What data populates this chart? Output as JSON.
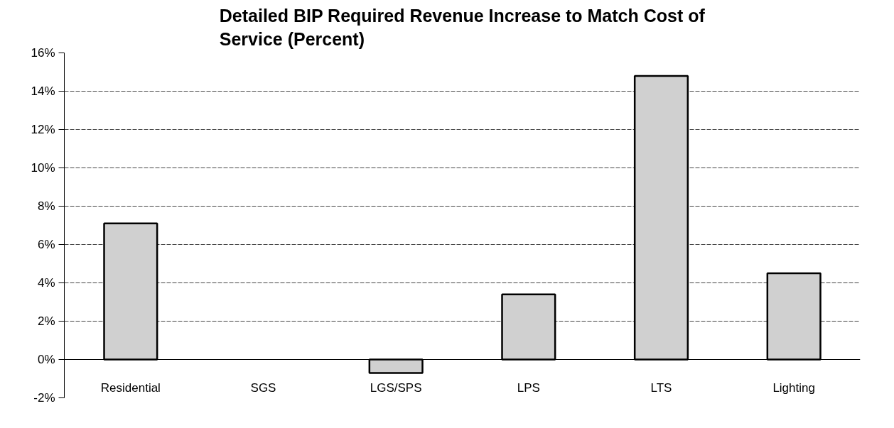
{
  "chart_data": {
    "type": "bar",
    "title": "Detailed BIP Required Revenue Increase to Match Cost of Service (Percent)",
    "categories": [
      "Residential",
      "SGS",
      "LGS/SPS",
      "LPS",
      "LTS",
      "Lighting"
    ],
    "values": [
      7.1,
      null,
      -0.7,
      3.4,
      14.8,
      4.5
    ],
    "color": "#d0d0d0",
    "ylim": [
      -2,
      16
    ],
    "yticks": [
      {
        "value": -2,
        "label": "-2%"
      },
      {
        "value": 0,
        "label": "0%"
      },
      {
        "value": 2,
        "label": "2%"
      },
      {
        "value": 4,
        "label": "4%"
      },
      {
        "value": 6,
        "label": "6%"
      },
      {
        "value": 8,
        "label": "8%"
      },
      {
        "value": 10,
        "label": "10%"
      },
      {
        "value": 12,
        "label": "12%"
      },
      {
        "value": 14,
        "label": "14%"
      },
      {
        "value": 16,
        "label": "16%"
      }
    ],
    "grid": "y"
  }
}
